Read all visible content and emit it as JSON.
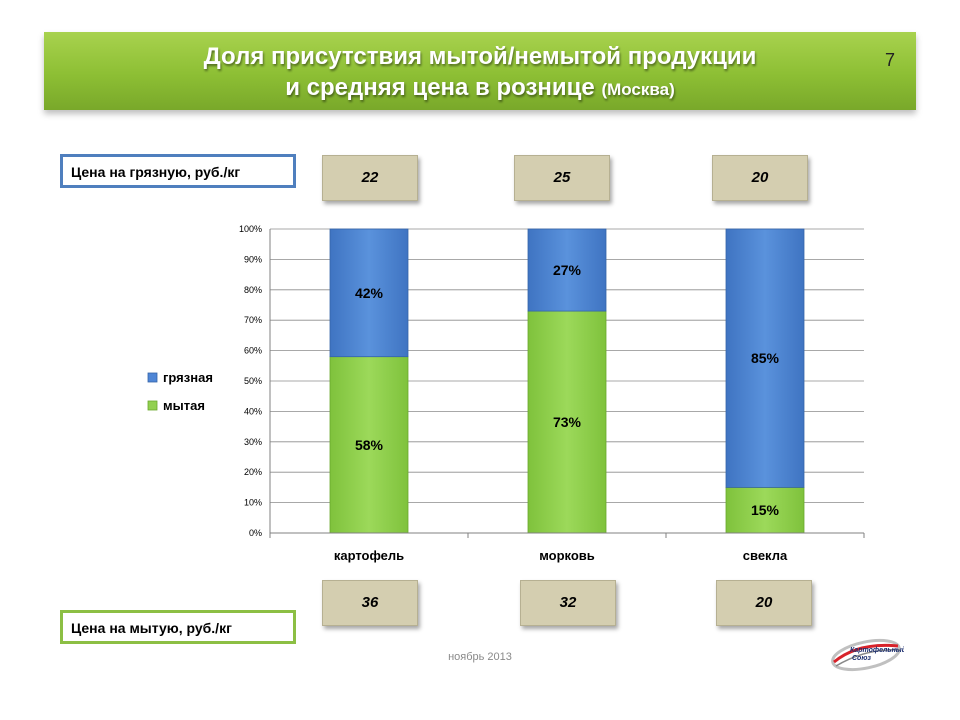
{
  "header": {
    "title_line1": "Доля присутствия мытой/немытой продукции",
    "title_line2": "и средняя цена в рознице",
    "title_suffix": "(Москва)",
    "page_number": "7"
  },
  "labels": {
    "dirty_price": "Цена на грязную, руб./кг",
    "washed_price": "Цена на мытую, руб./кг"
  },
  "dirty_prices": [
    "22",
    "25",
    "20"
  ],
  "washed_prices": [
    "36",
    "32",
    "20"
  ],
  "footer": {
    "date": "ноябрь 2013",
    "logo_text": "Картофельный Союз"
  },
  "colors": {
    "dirty": "#4f86d6",
    "washed": "#92d050",
    "title_bg": "#8dbf34"
  },
  "chart_data": {
    "type": "bar",
    "stacked": true,
    "categories": [
      "картофель",
      "морковь",
      "свекла"
    ],
    "series": [
      {
        "name": "мытая",
        "values": [
          58,
          73,
          15
        ],
        "labels": [
          "58%",
          "73%",
          "15%"
        ],
        "color": "#92d050"
      },
      {
        "name": "грязная",
        "values": [
          42,
          27,
          85
        ],
        "labels": [
          "42%",
          "27%",
          "85%"
        ],
        "color": "#4f86d6"
      }
    ],
    "ylim": [
      0,
      100
    ],
    "yticks": [
      "0%",
      "10%",
      "20%",
      "30%",
      "40%",
      "50%",
      "60%",
      "70%",
      "80%",
      "90%",
      "100%"
    ],
    "grid": true,
    "legend_position": "left"
  }
}
